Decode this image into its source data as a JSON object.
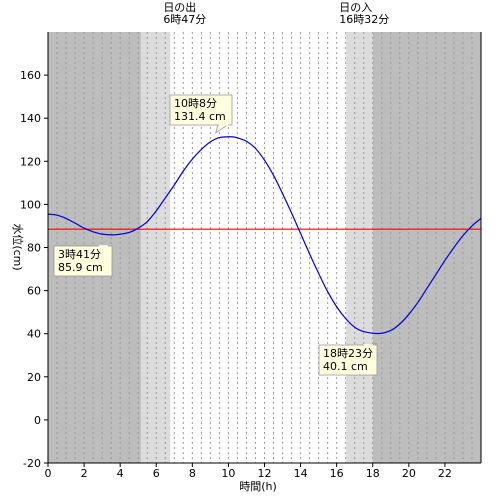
{
  "chart_data": {
    "type": "line",
    "xlabel": "時間(h)",
    "ylabel": "水位(cm)",
    "xlim": [
      0,
      24
    ],
    "ylim": [
      -20,
      180
    ],
    "x_ticks": [
      0,
      2,
      4,
      6,
      8,
      10,
      12,
      14,
      16,
      18,
      20,
      22
    ],
    "y_ticks": [
      -20,
      0,
      20,
      40,
      60,
      80,
      100,
      120,
      140,
      160
    ],
    "grid": "vertical-dotted",
    "night_shading": {
      "before_sunrise_end": 5.15,
      "twilight_morning": [
        5.15,
        6.78
      ],
      "twilight_evening": [
        16.53,
        18.0
      ],
      "after_sunset_start": 18.0
    },
    "sunrise": {
      "label": "日の出",
      "time": "6時47分",
      "x": 6.78
    },
    "sunset": {
      "label": "日の入",
      "time": "16時32分",
      "x": 16.53
    },
    "mean_level": 88.5,
    "series": [
      {
        "points": [
          [
            0,
            95.5
          ],
          [
            0.5,
            95.0
          ],
          [
            1,
            93.5
          ],
          [
            1.5,
            91.3
          ],
          [
            2,
            89.0
          ],
          [
            2.5,
            87.3
          ],
          [
            3,
            86.2
          ],
          [
            3.68,
            85.9
          ],
          [
            4.5,
            87.0
          ],
          [
            5,
            89.0
          ],
          [
            5.5,
            92.0
          ],
          [
            6,
            97.0
          ],
          [
            6.5,
            103.0
          ],
          [
            7,
            109.0
          ],
          [
            7.5,
            115.5
          ],
          [
            8,
            121.0
          ],
          [
            8.5,
            125.5
          ],
          [
            9,
            129.0
          ],
          [
            9.5,
            131.0
          ],
          [
            10.13,
            131.4
          ],
          [
            10.5,
            130.9
          ],
          [
            11,
            129.3
          ],
          [
            11.5,
            126.0
          ],
          [
            12,
            120.5
          ],
          [
            12.5,
            113.5
          ],
          [
            13,
            105.0
          ],
          [
            13.5,
            96.0
          ],
          [
            14,
            86.5
          ],
          [
            14.5,
            77.0
          ],
          [
            15,
            68.0
          ],
          [
            15.5,
            59.5
          ],
          [
            16,
            52.5
          ],
          [
            16.5,
            47.0
          ],
          [
            17,
            43.0
          ],
          [
            17.5,
            41.0
          ],
          [
            18.38,
            40.1
          ],
          [
            19,
            41.5
          ],
          [
            19.5,
            44.5
          ],
          [
            20,
            49.0
          ],
          [
            20.5,
            54.5
          ],
          [
            21,
            61.0
          ],
          [
            21.5,
            67.5
          ],
          [
            22,
            74.0
          ],
          [
            22.5,
            80.0
          ],
          [
            23,
            85.5
          ],
          [
            23.5,
            90.0
          ],
          [
            24,
            93.5
          ]
        ]
      }
    ],
    "annotations": [
      {
        "id": "low1",
        "time": "3時41分",
        "value": "85.9 cm",
        "x": 3.68,
        "y": 85.9
      },
      {
        "id": "high1",
        "time": "10時8分",
        "value": "131.4 cm",
        "x": 10.13,
        "y": 131.4
      },
      {
        "id": "low2",
        "time": "18時23分",
        "value": "40.1 cm",
        "x": 18.38,
        "y": 40.1
      }
    ]
  }
}
